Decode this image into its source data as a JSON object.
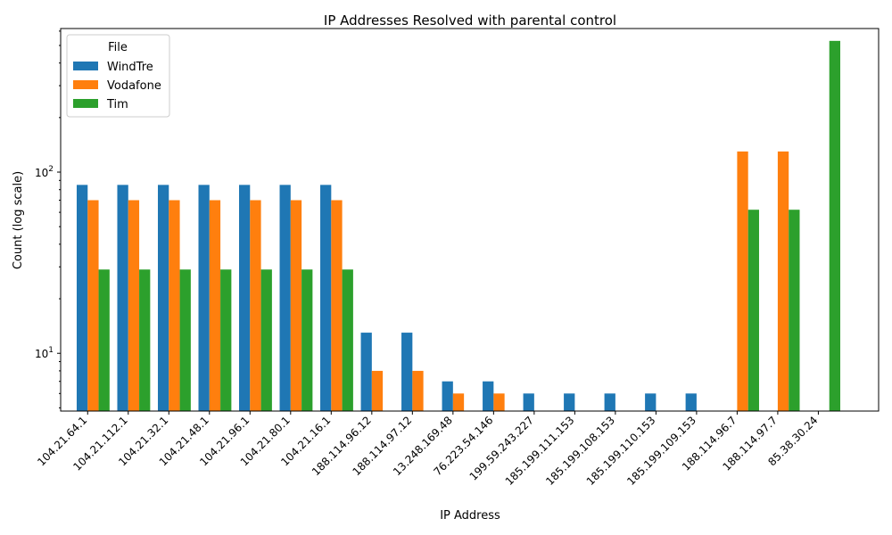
{
  "chart_data": {
    "type": "bar",
    "title": "IP Addresses Resolved with parental control",
    "xlabel": "IP Address",
    "ylabel": "Count (log scale)",
    "yscale": "log",
    "ylim": [
      4.8,
      620
    ],
    "yticks": [
      {
        "value": 10,
        "base": "10",
        "exp": "1"
      },
      {
        "value": 100,
        "base": "10",
        "exp": "2"
      }
    ],
    "grid": false,
    "legend": {
      "title": "File",
      "placement": "top-left"
    },
    "categories": [
      "104.21.64.1",
      "104.21.112.1",
      "104.21.32.1",
      "104.21.48.1",
      "104.21.96.1",
      "104.21.80.1",
      "104.21.16.1",
      "188.114.96.12",
      "188.114.97.12",
      "13.248.169.48",
      "76.223.54.146",
      "199.59.243.227",
      "185.199.111.153",
      "185.199.108.153",
      "185.199.110.153",
      "185.199.109.153",
      "188.114.96.7",
      "188.114.97.7",
      "85.38.30.24"
    ],
    "series": [
      {
        "name": "WindTre",
        "color": "#1f77b4",
        "values": [
          85,
          85,
          85,
          85,
          85,
          85,
          85,
          13,
          13,
          7,
          7,
          6,
          6,
          6,
          6,
          6,
          null,
          null,
          null
        ]
      },
      {
        "name": "Vodafone",
        "color": "#ff7f0e",
        "values": [
          70,
          70,
          70,
          70,
          70,
          70,
          70,
          8,
          8,
          6,
          6,
          null,
          null,
          null,
          null,
          null,
          130,
          130,
          null
        ]
      },
      {
        "name": "Tim",
        "color": "#2ca02c",
        "values": [
          29,
          29,
          29,
          29,
          29,
          29,
          29,
          null,
          null,
          null,
          null,
          null,
          null,
          null,
          null,
          null,
          62,
          62,
          530
        ]
      }
    ]
  }
}
